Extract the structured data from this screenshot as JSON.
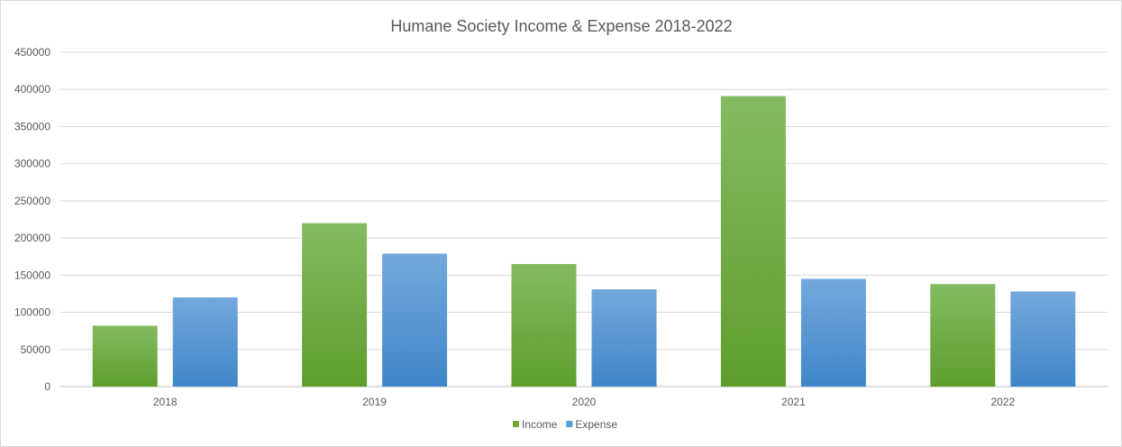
{
  "chart_data": {
    "type": "bar",
    "title": "Humane Society Income & Expense 2018-2022",
    "xlabel": "",
    "ylabel": "",
    "categories": [
      "2018",
      "2019",
      "2020",
      "2021",
      "2022"
    ],
    "series": [
      {
        "name": "Income",
        "values": [
          82000,
          220000,
          165000,
          391000,
          138000
        ],
        "color": "#6aaa3a"
      },
      {
        "name": "Expense",
        "values": [
          120000,
          179000,
          131000,
          145000,
          128000
        ],
        "color": "#5b9bd5"
      }
    ],
    "ylim": [
      0,
      450000
    ],
    "yticks": [
      "0",
      "50000",
      "100000",
      "150000",
      "200000",
      "250000",
      "300000",
      "350000",
      "400000",
      "450000"
    ],
    "grid": true,
    "legend_position": "bottom"
  }
}
